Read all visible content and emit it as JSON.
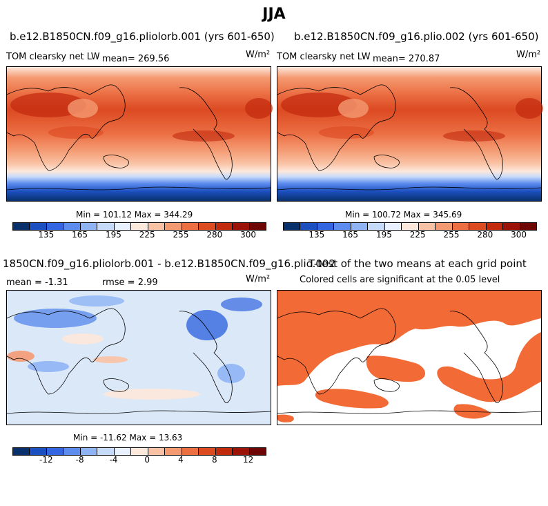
{
  "title": "JJA",
  "units": "W/m²",
  "panels": {
    "p1": {
      "title": "b.e12.B1850CN.f09_g16.pliolorb.001 (yrs 601-650)",
      "variable": "TOM clearsky net LW",
      "mean": "mean= 269.56",
      "minmax": "Min = 101.12 Max = 344.29"
    },
    "p2": {
      "title": "b.e12.B1850CN.f09_g16.plio.002 (yrs 601-650)",
      "variable": "TOM clearsky net LW",
      "mean": "mean= 270.87",
      "minmax": "Min = 100.72 Max = 345.69"
    },
    "p3": {
      "title": "1850CN.f09_g16.pliolorb.001 - b.e12.B1850CN.f09_g16.plio.002",
      "mean": "mean =   -1.31",
      "rmse": "rmse =    2.99",
      "minmax": "Min = -11.62 Max = 13.63"
    },
    "p4": {
      "title": "T-test of the two means at each grid point",
      "subtitle": "Colored cells are significant at the 0.05 level"
    }
  },
  "colorbar_abs": {
    "colors": [
      "#08306b",
      "#1c4fbf",
      "#3366e0",
      "#5c8cee",
      "#8fb4f4",
      "#c6dbfa",
      "#e8f1fd",
      "#fde8dc",
      "#f9c2a4",
      "#f49a72",
      "#ec6f44",
      "#dc4a22",
      "#c22a0e",
      "#9a1306",
      "#6e0604"
    ],
    "ticks": [
      "135",
      "165",
      "195",
      "225",
      "255",
      "280",
      "300"
    ]
  },
  "colorbar_diff": {
    "colors": [
      "#08306b",
      "#1c4fbf",
      "#3366e0",
      "#5c8cee",
      "#8fb4f4",
      "#c6dbfa",
      "#e8f1fd",
      "#fde8dc",
      "#f9c2a4",
      "#f49a72",
      "#ec6f44",
      "#dc4a22",
      "#c22a0e",
      "#9a1306",
      "#6e0604"
    ],
    "ticks": [
      "-12",
      "-8",
      "-4",
      "0",
      "4",
      "8",
      "12"
    ]
  },
  "colors": {
    "significant": "#f26a35",
    "warm": "#e0522a",
    "cold": "#1c4fbf",
    "diff_bg": "#dbe8f8"
  }
}
